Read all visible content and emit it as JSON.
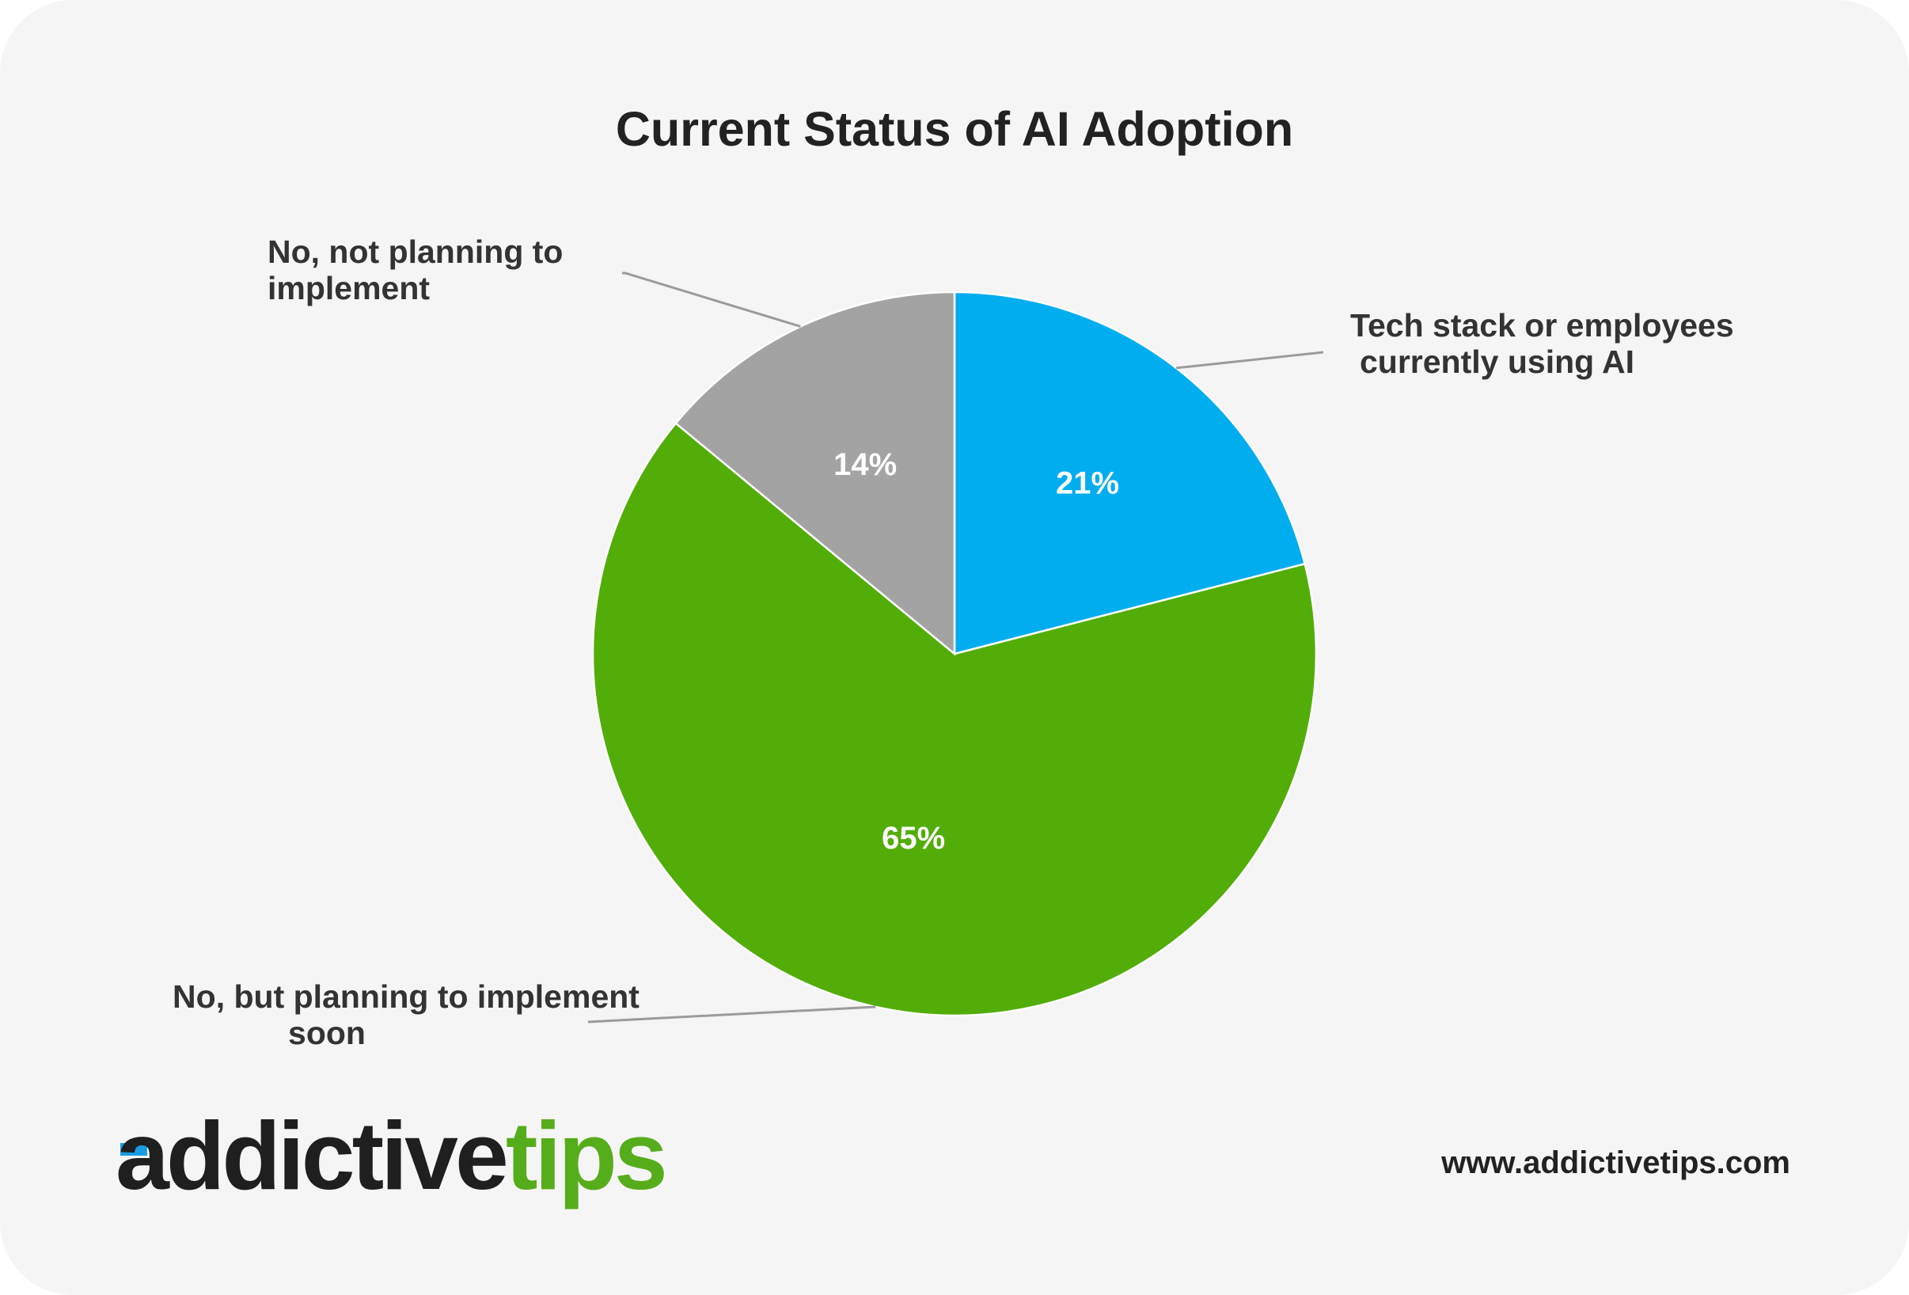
{
  "chart_data": {
    "type": "pie",
    "title": "Current Status of AI Adoption",
    "slices": [
      {
        "label": "Tech stack or employees currently using AI",
        "label_lines": [
          "Tech stack or employees",
          "currently using AI"
        ],
        "value": 21,
        "value_label": "21%",
        "color": "#00adef"
      },
      {
        "label": "No, but planning to implement soon",
        "label_lines": [
          "No, but planning to implement",
          "soon"
        ],
        "value": 65,
        "value_label": "65%",
        "color": "#52ad08"
      },
      {
        "label": "No, not planning to implement",
        "label_lines": [
          "No, not planning to",
          "implement"
        ],
        "value": 14,
        "value_label": "14%",
        "color": "#a3a3a3"
      }
    ],
    "start_angle": "12 o'clock",
    "direction": "clockwise",
    "legend": "none"
  },
  "branding": {
    "logo_part1": "addictive",
    "logo_part2": "tips",
    "logo_accent_color": "#1a9de0",
    "url": "www.addictivetips.com"
  }
}
